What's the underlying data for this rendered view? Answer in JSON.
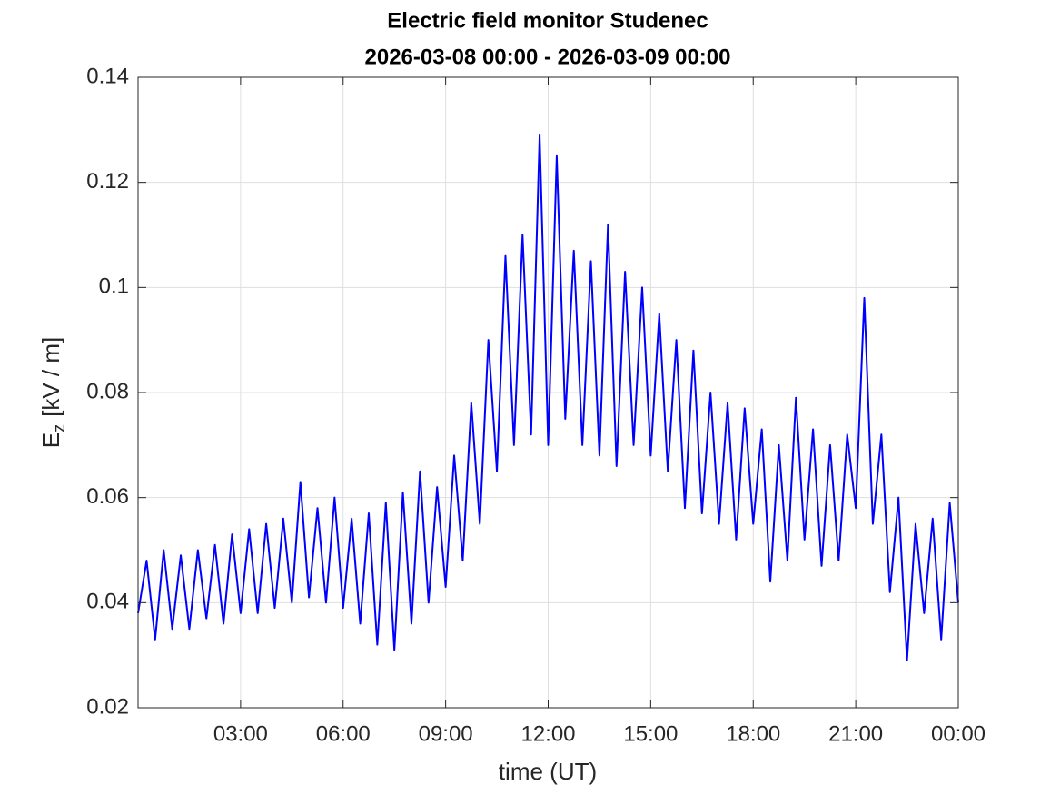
{
  "chart_data": {
    "type": "line",
    "title": "Electric field monitor Studenec",
    "subtitle": "2026-03-08 00:00 - 2026-03-09 00:00",
    "xlabel": "time (UT)",
    "ylabel": "E",
    "ylabel_subscript": "z",
    "ylabel_unit": "[kV / m]",
    "grid": true,
    "xlim": [
      0,
      24
    ],
    "xticks": [
      {
        "value": 3,
        "label": "03:00"
      },
      {
        "value": 6,
        "label": "06:00"
      },
      {
        "value": 9,
        "label": "09:00"
      },
      {
        "value": 12,
        "label": "12:00"
      },
      {
        "value": 15,
        "label": "15:00"
      },
      {
        "value": 18,
        "label": "18:00"
      },
      {
        "value": 21,
        "label": "21:00"
      },
      {
        "value": 24,
        "label": "00:00"
      }
    ],
    "ylim": [
      0.02,
      0.14
    ],
    "yticks": [
      0.02,
      0.04,
      0.06,
      0.08,
      0.1,
      0.12,
      0.14
    ],
    "x": [
      0,
      0.25,
      0.5,
      0.75,
      1,
      1.25,
      1.5,
      1.75,
      2,
      2.25,
      2.5,
      2.75,
      3,
      3.25,
      3.5,
      3.75,
      4,
      4.25,
      4.5,
      4.75,
      5,
      5.25,
      5.5,
      5.75,
      6,
      6.25,
      6.5,
      6.75,
      7,
      7.25,
      7.5,
      7.75,
      8,
      8.25,
      8.5,
      8.75,
      9,
      9.25,
      9.5,
      9.75,
      10,
      10.25,
      10.5,
      10.75,
      11,
      11.25,
      11.5,
      11.75,
      12,
      12.25,
      12.5,
      12.75,
      13,
      13.25,
      13.5,
      13.75,
      14,
      14.25,
      14.5,
      14.75,
      15,
      15.25,
      15.5,
      15.75,
      16,
      16.25,
      16.5,
      16.75,
      17,
      17.25,
      17.5,
      17.75,
      18,
      18.25,
      18.5,
      18.75,
      19,
      19.25,
      19.5,
      19.75,
      20,
      20.25,
      20.5,
      20.75,
      21,
      21.25,
      21.5,
      21.75,
      22,
      22.25,
      22.5,
      22.75,
      23,
      23.25,
      23.5,
      23.75,
      24
    ],
    "series": [
      {
        "color": "#0000ff",
        "values": [
          0.038,
          0.048,
          0.033,
          0.05,
          0.035,
          0.049,
          0.035,
          0.05,
          0.037,
          0.051,
          0.036,
          0.053,
          0.038,
          0.054,
          0.038,
          0.055,
          0.039,
          0.056,
          0.04,
          0.063,
          0.041,
          0.058,
          0.04,
          0.06,
          0.039,
          0.056,
          0.036,
          0.057,
          0.032,
          0.059,
          0.031,
          0.061,
          0.036,
          0.065,
          0.04,
          0.062,
          0.043,
          0.068,
          0.048,
          0.078,
          0.055,
          0.09,
          0.065,
          0.106,
          0.07,
          0.11,
          0.072,
          0.129,
          0.07,
          0.125,
          0.075,
          0.107,
          0.07,
          0.105,
          0.068,
          0.112,
          0.066,
          0.103,
          0.07,
          0.1,
          0.068,
          0.095,
          0.065,
          0.09,
          0.058,
          0.088,
          0.057,
          0.08,
          0.055,
          0.078,
          0.052,
          0.077,
          0.055,
          0.073,
          0.044,
          0.07,
          0.048,
          0.079,
          0.052,
          0.073,
          0.047,
          0.07,
          0.048,
          0.072,
          0.058,
          0.098,
          0.055,
          0.072,
          0.042,
          0.06,
          0.029,
          0.055,
          0.038,
          0.056,
          0.033,
          0.059,
          0.04
        ]
      }
    ]
  }
}
